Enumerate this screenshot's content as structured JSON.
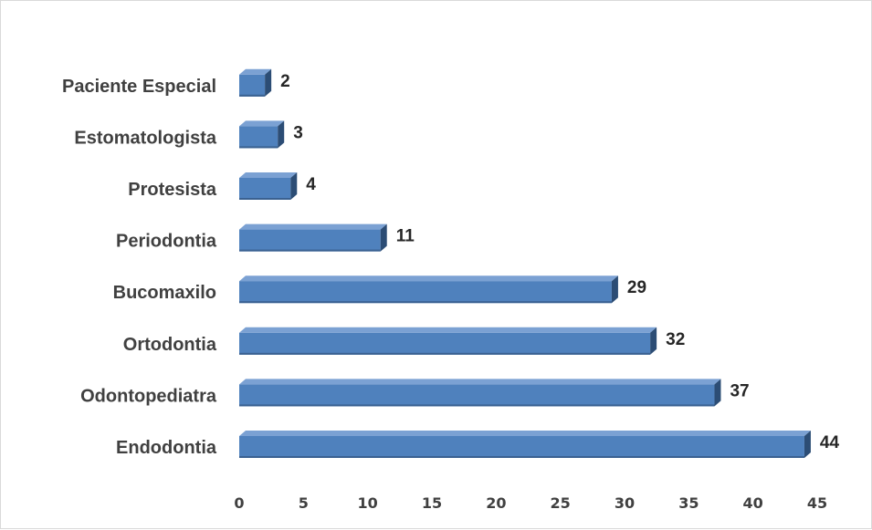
{
  "chart_data": {
    "type": "bar",
    "orientation": "horizontal",
    "style": "3d",
    "title": "",
    "xlabel": "",
    "ylabel": "",
    "categories": [
      "Endodontia",
      "Odontopediatra",
      "Ortodontia",
      "Bucomaxilo",
      "Periodontia",
      "Protesista",
      "Estomatologista",
      "Paciente Especial"
    ],
    "values": [
      44,
      37,
      32,
      29,
      11,
      4,
      3,
      2
    ],
    "xlim": [
      0,
      45
    ],
    "xticks": [
      0,
      5,
      10,
      15,
      20,
      25,
      30,
      35,
      40,
      45
    ],
    "grid": false,
    "legend": "none",
    "colors": {
      "bar_front": "#4f81bd",
      "bar_top": "#7ba1d3",
      "bar_side": "#2c4d75",
      "bar_bottom": "#3a6191"
    }
  }
}
